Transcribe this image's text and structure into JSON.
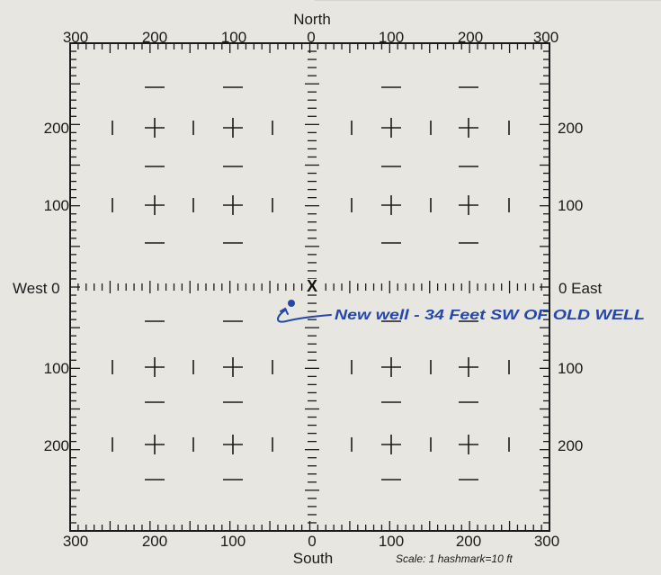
{
  "directions": {
    "north": "North",
    "south": "South",
    "west": "West 0",
    "east": "0 East"
  },
  "top_scale": [
    "300",
    "200",
    "100",
    "0",
    "100",
    "200",
    "300"
  ],
  "bottom_scale": [
    "300",
    "200",
    "100",
    "0",
    "100",
    "200",
    "300"
  ],
  "left_scale": [
    "200",
    "100",
    "100",
    "200"
  ],
  "right_scale": [
    "200",
    "100",
    "100",
    "200"
  ],
  "scale_note": "Scale:  1 hashmark=10 ft",
  "annotation": "New well - 34 Feet SW OF OLD WELL",
  "old_well_marker": "X",
  "colors": {
    "paper": "#e8e6e1",
    "ink": "#1a1a1a",
    "pen": "#2447a8"
  }
}
